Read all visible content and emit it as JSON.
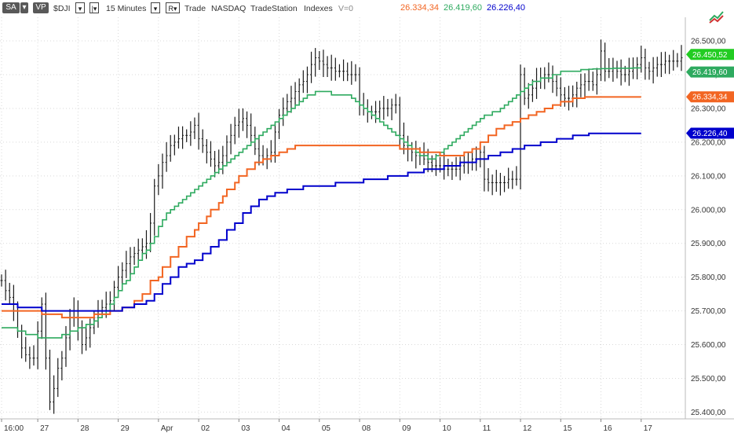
{
  "toolbar": {
    "sa_label": "SA",
    "vp_label": "VP",
    "symbol": "$DJI",
    "interval": "15 Minutes",
    "r_label": "R",
    "category": "Trade",
    "exchange": "NASDAQ",
    "source": "TradeStation",
    "type": "Indexes",
    "volume": "V=0",
    "dropdown_glyph": "▾",
    "bar_glyph": "|▾"
  },
  "last_values": [
    {
      "value": "26.334,34",
      "color": "#f26522"
    },
    {
      "value": "26.419,60",
      "color": "#2eaa5f"
    },
    {
      "value": "26.226,40",
      "color": "#0000cc"
    }
  ],
  "chart_data": {
    "type": "line",
    "y_range": [
      25380,
      26570
    ],
    "y_ticks": [
      "25.400,00",
      "25.500,00",
      "25.600,00",
      "25.700,00",
      "25.800,00",
      "25.900,00",
      "26.000,00",
      "26.100,00",
      "26.200,00",
      "26.300,00",
      "26.400,00",
      "26.500,00"
    ],
    "y_tick_values": [
      25400,
      25500,
      25600,
      25700,
      25800,
      25900,
      26000,
      26100,
      26200,
      26300,
      26400,
      26500
    ],
    "x_ticks": [
      "16:00",
      "27",
      "28",
      "29",
      "Apr",
      "02",
      "03",
      "04",
      "05",
      "08",
      "09",
      "10",
      "11",
      "12",
      "15",
      "16",
      "17"
    ],
    "x_tick_index": [
      0,
      9,
      19,
      29,
      39,
      49,
      59,
      69,
      79,
      89,
      99,
      109,
      119,
      129,
      139,
      149,
      159
    ],
    "n_bars": 170,
    "grid": true,
    "price_tags": [
      {
        "value": 26450.52,
        "label": "26.450,52",
        "color": "#22cc22"
      },
      {
        "value": 26419.6,
        "label": "26.419,60",
        "color": "#2eaa5f"
      },
      {
        "value": 26334.34,
        "label": "26.334,34",
        "color": "#f26522"
      },
      {
        "value": 26226.4,
        "label": "26.226,40",
        "color": "#0000cc"
      }
    ],
    "price_series": [
      25790,
      25760,
      25740,
      25700,
      25640,
      25590,
      25570,
      25560,
      25560,
      25640,
      25720,
      25560,
      25430,
      25470,
      25530,
      25560,
      25620,
      25680,
      25700,
      25650,
      25600,
      25620,
      25650,
      25680,
      25700,
      25710,
      25720,
      25730,
      25770,
      25800,
      25820,
      25840,
      25860,
      25870,
      25880,
      25890,
      25900,
      25960,
      26070,
      26100,
      26140,
      26160,
      26190,
      26200,
      26210,
      26220,
      26220,
      26230,
      26250,
      26210,
      26190,
      26170,
      26150,
      26130,
      26140,
      26160,
      26200,
      26220,
      26250,
      26260,
      26270,
      26250,
      26220,
      26180,
      26160,
      26150,
      26160,
      26170,
      26230,
      26280,
      26300,
      26320,
      26330,
      26350,
      26370,
      26380,
      26400,
      26430,
      26450,
      26440,
      26430,
      26420,
      26420,
      26410,
      26410,
      26410,
      26400,
      26400,
      26400,
      26310,
      26300,
      26290,
      26290,
      26290,
      26300,
      26300,
      26300,
      26310,
      26310,
      26220,
      26190,
      26180,
      26170,
      26160,
      26160,
      26150,
      26140,
      26130,
      26130,
      26130,
      26120,
      26120,
      26120,
      26120,
      26130,
      26140,
      26140,
      26150,
      26150,
      26170,
      26090,
      26080,
      26080,
      26080,
      26080,
      26080,
      26090,
      26090,
      26090,
      26400,
      26330,
      26340,
      26360,
      26380,
      26390,
      26400,
      26400,
      26380,
      26360,
      26340,
      26330,
      26330,
      26340,
      26360,
      26370,
      26380,
      26380,
      26370,
      26400,
      26470,
      26410,
      26410,
      26420,
      26410,
      26400,
      26400,
      26410,
      26420,
      26430,
      26450,
      26420,
      26410,
      26420,
      26430,
      26430,
      26440,
      26440,
      26440,
      26440,
      26450
    ],
    "series": [
      {
        "values": [
          25650,
          25650,
          25650,
          25650,
          25640,
          25640,
          25630,
          25630,
          25630,
          25620,
          25620,
          25620,
          25620,
          25620,
          25620,
          25630,
          25630,
          25640,
          25640,
          25650,
          25650,
          25660,
          25660,
          25670,
          25680,
          25690,
          25700,
          25720,
          25740,
          25760,
          25780,
          25790,
          25810,
          25830,
          25850,
          25870,
          25880,
          25900,
          25920,
          25950,
          25970,
          25990,
          26000,
          26010,
          26020,
          26030,
          26040,
          26050,
          26060,
          26070,
          26080,
          26090,
          26100,
          26110,
          26120,
          26130,
          26140,
          26150,
          26160,
          26170,
          26180,
          26190,
          26200,
          26210,
          26220,
          26230,
          26240,
          26250,
          26260,
          26270,
          26280,
          26290,
          26300,
          26310,
          26320,
          26330,
          26340,
          26340,
          26350,
          26350,
          26350,
          26350,
          26340,
          26340,
          26340,
          26340,
          26340,
          26330,
          26320,
          26310,
          26300,
          26290,
          26280,
          26270,
          26260,
          26250,
          26240,
          26230,
          26220,
          26210,
          26200,
          26190,
          26180,
          26170,
          26160,
          26160,
          26150,
          26150,
          26160,
          26170,
          26180,
          26190,
          26200,
          26210,
          26220,
          26230,
          26240,
          26250,
          26260,
          26270,
          26280,
          26280,
          26290,
          26290,
          26300,
          26310,
          26320,
          26330,
          26340,
          26350,
          26360,
          26370,
          26380,
          26380,
          26390,
          26390,
          26390,
          26400,
          26400,
          26410,
          26410,
          26410,
          26410,
          26410,
          26415,
          26415,
          26416,
          26417,
          26417,
          26418,
          26418,
          26418,
          26419,
          26419,
          26419,
          26419,
          26419,
          26420,
          26420,
          26420
        ],
        "color": "#2eaa5f"
      },
      {
        "values": [
          25700,
          25700,
          25700,
          25700,
          25700,
          25700,
          25700,
          25700,
          25700,
          25700,
          25690,
          25690,
          25690,
          25690,
          25690,
          25680,
          25680,
          25680,
          25680,
          25680,
          25680,
          25680,
          25680,
          25690,
          25690,
          25690,
          25690,
          25700,
          25700,
          25700,
          25710,
          25710,
          25710,
          25730,
          25730,
          25750,
          25750,
          25790,
          25790,
          25800,
          25830,
          25830,
          25860,
          25860,
          25890,
          25890,
          25920,
          25920,
          25940,
          25960,
          25960,
          25980,
          26000,
          26000,
          26020,
          26040,
          26060,
          26060,
          26080,
          26100,
          26100,
          26120,
          26120,
          26140,
          26140,
          26150,
          26150,
          26160,
          26160,
          26170,
          26170,
          26180,
          26180,
          26190,
          26190,
          26190,
          26190,
          26190,
          26190,
          26190,
          26190,
          26190,
          26190,
          26190,
          26190,
          26190,
          26190,
          26190,
          26190,
          26190,
          26190,
          26190,
          26190,
          26190,
          26190,
          26190,
          26190,
          26190,
          26190,
          26180,
          26180,
          26180,
          26180,
          26180,
          26170,
          26170,
          26170,
          26170,
          26170,
          26160,
          26160,
          26160,
          26160,
          26160,
          26160,
          26170,
          26170,
          26180,
          26180,
          26200,
          26200,
          26220,
          26220,
          26240,
          26240,
          26250,
          26250,
          26260,
          26260,
          26270,
          26270,
          26280,
          26280,
          26290,
          26290,
          26300,
          26300,
          26310,
          26310,
          26320,
          26320,
          26320,
          26330,
          26330,
          26330,
          26334,
          26334,
          26334,
          26334,
          26334,
          26334,
          26334,
          26334,
          26334,
          26334,
          26334,
          26334,
          26334,
          26334,
          26334
        ],
        "color": "#f26522"
      },
      {
        "values": [
          25720,
          25720,
          25720,
          25720,
          25710,
          25710,
          25710,
          25710,
          25710,
          25710,
          25700,
          25700,
          25700,
          25700,
          25700,
          25700,
          25700,
          25700,
          25700,
          25700,
          25700,
          25700,
          25700,
          25700,
          25700,
          25700,
          25700,
          25700,
          25700,
          25700,
          25710,
          25710,
          25710,
          25720,
          25720,
          25720,
          25730,
          25730,
          25750,
          25750,
          25780,
          25780,
          25800,
          25800,
          25830,
          25830,
          25840,
          25840,
          25850,
          25850,
          25870,
          25870,
          25890,
          25890,
          25910,
          25910,
          25940,
          25940,
          25960,
          25960,
          25990,
          25990,
          26010,
          26010,
          26030,
          26030,
          26040,
          26040,
          26050,
          26050,
          26050,
          26060,
          26060,
          26060,
          26060,
          26070,
          26070,
          26070,
          26070,
          26070,
          26070,
          26070,
          26070,
          26080,
          26080,
          26080,
          26080,
          26080,
          26080,
          26080,
          26090,
          26090,
          26090,
          26090,
          26090,
          26090,
          26100,
          26100,
          26100,
          26100,
          26100,
          26110,
          26110,
          26110,
          26110,
          26120,
          26120,
          26120,
          26120,
          26120,
          26130,
          26130,
          26130,
          26130,
          26140,
          26140,
          26140,
          26140,
          26150,
          26150,
          26150,
          26160,
          26160,
          26160,
          26170,
          26170,
          26170,
          26180,
          26180,
          26180,
          26190,
          26190,
          26190,
          26190,
          26200,
          26200,
          26200,
          26200,
          26210,
          26210,
          26210,
          26210,
          26220,
          26220,
          26220,
          26220,
          26226,
          26226,
          26226,
          26226,
          26226,
          26226,
          26226,
          26226,
          26226,
          26226,
          26226,
          26226,
          26226,
          26226
        ],
        "color": "#0000cc"
      }
    ]
  }
}
